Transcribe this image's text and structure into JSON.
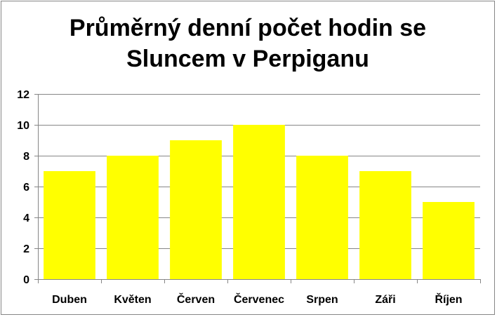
{
  "chart_data": {
    "type": "bar",
    "title_lines": [
      "Průměrný denní počet hodin se",
      "Sluncem v Perpiganu"
    ],
    "categories": [
      "Duben",
      "Květen",
      "Červen",
      "Červenec",
      "Srpen",
      "Záři",
      "Říjen"
    ],
    "values": [
      7,
      8,
      9,
      10,
      8,
      7,
      5
    ],
    "ylim": [
      0,
      12
    ],
    "yticks": [
      0,
      2,
      4,
      6,
      8,
      10,
      12
    ],
    "xlabel": "",
    "ylabel": "",
    "grid": true,
    "legend": "none",
    "bar_color": "#FFFF00",
    "gridline_color": "#868686"
  }
}
